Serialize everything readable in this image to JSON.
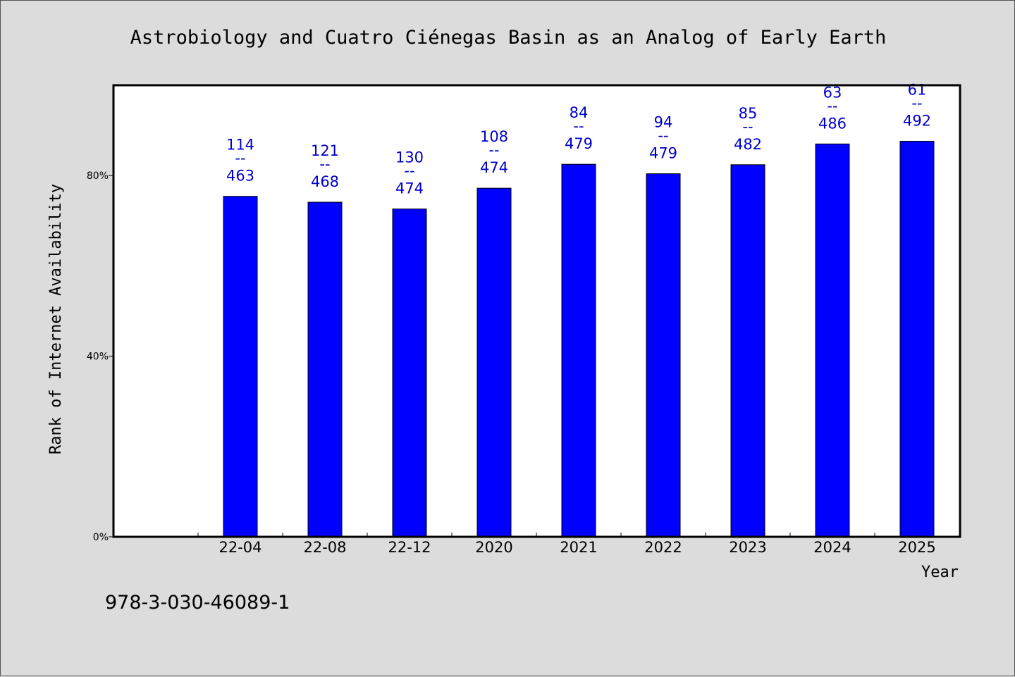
{
  "chart_data": {
    "type": "bar",
    "title": "Astrobiology and Cuatro Ciénegas Basin as an Analog of Early Earth",
    "xlabel": "Year",
    "ylabel": "Rank of Internet Availability",
    "ylim": [
      0,
      100
    ],
    "y_ticks": [
      {
        "value": 0,
        "label": "0%"
      },
      {
        "value": 40,
        "label": "40%"
      },
      {
        "value": 80,
        "label": "80%"
      }
    ],
    "categories": [
      "22-04",
      "22-08",
      "22-12",
      "2020",
      "2021",
      "2022",
      "2023",
      "2024",
      "2025"
    ],
    "values": [
      75.4,
      74.1,
      72.6,
      77.2,
      82.5,
      80.4,
      82.4,
      87.0,
      87.6
    ],
    "bar_labels": [
      {
        "top": "114",
        "sep": "--",
        "bottom": "463"
      },
      {
        "top": "121",
        "sep": "--",
        "bottom": "468"
      },
      {
        "top": "130",
        "sep": "--",
        "bottom": "474"
      },
      {
        "top": "108",
        "sep": "--",
        "bottom": "474"
      },
      {
        "top": "84",
        "sep": "--",
        "bottom": "479"
      },
      {
        "top": "94",
        "sep": "--",
        "bottom": "479"
      },
      {
        "top": "85",
        "sep": "--",
        "bottom": "482"
      },
      {
        "top": "63",
        "sep": "--",
        "bottom": "486"
      },
      {
        "top": "61",
        "sep": "--",
        "bottom": "492"
      }
    ],
    "grid": false,
    "bar_color": "#0000ff",
    "label_color": "#0000cc"
  },
  "footer": {
    "isbn": "978-3-030-46089-1"
  }
}
